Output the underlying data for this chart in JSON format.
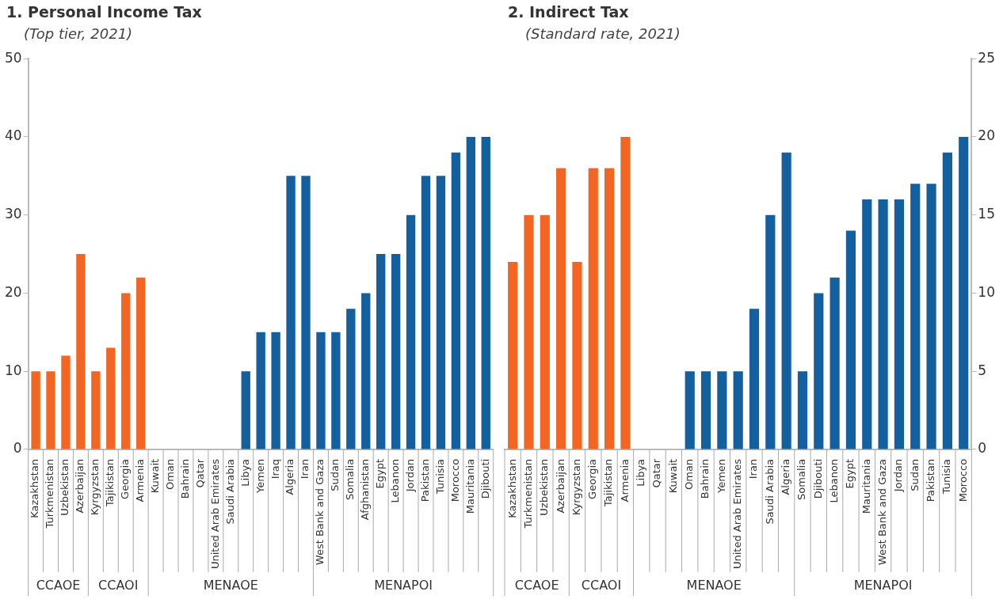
{
  "chart_data": [
    {
      "type": "bar",
      "title": "1. Personal Income Tax",
      "subtitle": "(Top tier, 2021)",
      "categories": [
        "Kazakhstan",
        "Turkmenistan",
        "Uzbekistan",
        "Azerbaijan",
        "Kyrgyzstan",
        "Tajikistan",
        "Georgia",
        "Armenia",
        "Kuwait",
        "Oman",
        "Bahrain",
        "Qatar",
        "United Arab Emirates",
        "Saudi Arabia",
        "Libya",
        "Yemen",
        "Iraq",
        "Algeria",
        "Iran",
        "West Bank and Gaza",
        "Sudan",
        "Somalia",
        "Afghanistan",
        "Egypt",
        "Lebanon",
        "Jordan",
        "Pakistan",
        "Tunisia",
        "Morocco",
        "Mauritania",
        "Djibouti"
      ],
      "series": [
        {
          "color": "#f26522",
          "values": [
            10,
            10,
            12,
            25,
            null,
            null,
            null,
            null,
            null,
            null,
            null,
            null,
            null,
            null,
            null,
            null,
            null,
            null,
            null,
            null,
            null,
            null,
            null,
            null,
            null,
            null,
            null,
            null,
            null,
            null,
            null
          ]
        },
        {
          "color": "#f26522",
          "values": [
            null,
            null,
            null,
            null,
            10,
            13,
            20,
            22,
            null,
            null,
            null,
            null,
            null,
            null,
            null,
            null,
            null,
            null,
            null,
            null,
            null,
            null,
            null,
            null,
            null,
            null,
            null,
            null,
            null,
            null,
            null
          ]
        },
        {
          "color": "#14609e",
          "values": [
            null,
            null,
            null,
            null,
            null,
            null,
            null,
            null,
            0,
            0,
            0,
            0,
            0,
            0,
            10,
            15,
            15,
            35,
            35,
            null,
            null,
            null,
            null,
            null,
            null,
            null,
            null,
            null,
            null,
            null,
            null
          ]
        },
        {
          "color": "#14609e",
          "values": [
            null,
            null,
            null,
            null,
            null,
            null,
            null,
            null,
            null,
            null,
            null,
            null,
            null,
            null,
            null,
            null,
            null,
            null,
            null,
            15,
            15,
            18,
            20,
            25,
            25,
            30,
            35,
            35,
            38,
            40,
            40
          ]
        }
      ],
      "ylim": [
        0,
        50
      ],
      "yticks": [
        0,
        10,
        20,
        30,
        40,
        50
      ],
      "grid": false,
      "legend": false,
      "annotations": [
        "CCAOE",
        "CCAOI",
        "MENAOE",
        "MENAPOI"
      ]
    },
    {
      "type": "bar",
      "title": "2. Indirect Tax",
      "subtitle": "(Standard rate, 2021)",
      "categories": [
        "Kazakhstan",
        "Turkmenistan",
        "Uzbekistan",
        "Azerbaijan",
        "Kyrgyzstan",
        "Georgia",
        "Tajikistan",
        "Armenia",
        "Libya",
        "Qatar",
        "Kuwait",
        "Oman",
        "Bahrain",
        "Yemen",
        "United Arab Emirates",
        "Iran",
        "Saudi Arabia",
        "Algeria",
        "Somalia",
        "Djibouti",
        "Lebanon",
        "Egypt",
        "Mauritania",
        "West Bank and Gaza",
        "Jordan",
        "Sudan",
        "Pakistan",
        "Tunisia",
        "Morocco"
      ],
      "series": [
        {
          "axis": "y2",
          "color": "#f26522",
          "values": [
            12,
            15,
            15,
            18,
            null,
            null,
            null,
            null,
            null,
            null,
            null,
            null,
            null,
            null,
            null,
            null,
            null,
            null,
            null,
            null,
            null,
            null,
            null,
            null,
            null,
            null,
            null,
            null,
            null
          ]
        },
        {
          "axis": "y2",
          "color": "#f26522",
          "values": [
            null,
            null,
            null,
            null,
            12,
            18,
            18,
            20,
            null,
            null,
            null,
            null,
            null,
            null,
            null,
            null,
            null,
            null,
            null,
            null,
            null,
            null,
            null,
            null,
            null,
            null,
            null,
            null,
            null
          ]
        },
        {
          "axis": "y2",
          "color": "#14609e",
          "values": [
            null,
            null,
            null,
            null,
            null,
            null,
            null,
            null,
            0,
            0,
            0,
            5,
            5,
            5,
            5,
            9,
            15,
            19,
            null,
            null,
            null,
            null,
            null,
            null,
            null,
            null,
            null,
            null,
            null
          ]
        },
        {
          "axis": "y2",
          "color": "#14609e",
          "values": [
            null,
            null,
            null,
            null,
            null,
            null,
            null,
            null,
            null,
            null,
            null,
            null,
            null,
            null,
            null,
            null,
            null,
            null,
            5,
            10,
            11,
            14,
            16,
            16,
            16,
            17,
            17,
            19,
            20
          ]
        }
      ],
      "y2lim": [
        0,
        25
      ],
      "y2ticks": [
        0,
        5,
        10,
        15,
        20,
        25
      ],
      "grid": false,
      "legend": false,
      "annotations": [
        "CCAOE",
        "CCAOI",
        "MENAOE",
        "MENAPOI"
      ]
    }
  ]
}
